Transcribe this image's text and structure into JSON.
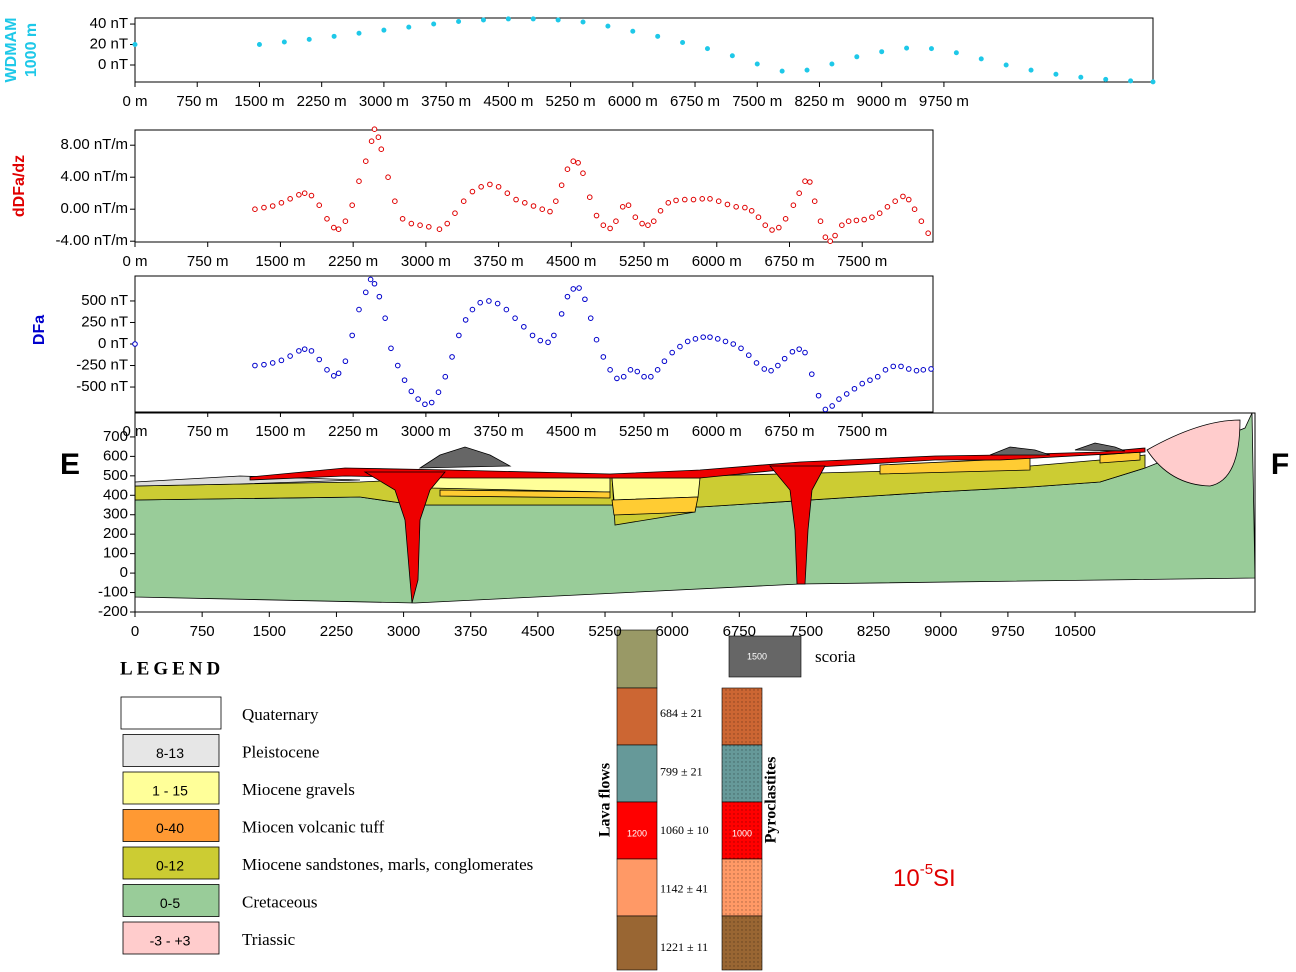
{
  "chart_data": [
    {
      "type": "scatter",
      "ylabel": [
        "WDMAM",
        "1000 m"
      ],
      "color": "#1ec8e8",
      "marker": "filled",
      "xlim": [
        0,
        12270
      ],
      "ylim": [
        -16.6,
        45.9
      ],
      "xticks": [
        {
          "value": 0,
          "label": "0 m"
        },
        {
          "value": 750,
          "label": "750 m"
        },
        {
          "value": 1500,
          "label": "1500 m"
        },
        {
          "value": 2250,
          "label": "2250 m"
        },
        {
          "value": 3000,
          "label": "3000 m"
        },
        {
          "value": 3750,
          "label": "3750 m"
        },
        {
          "value": 4500,
          "label": "4500 m"
        },
        {
          "value": 5250,
          "label": "5250 m"
        },
        {
          "value": 6000,
          "label": "6000 m"
        },
        {
          "value": 6750,
          "label": "6750 m"
        },
        {
          "value": 7500,
          "label": "7500 m"
        },
        {
          "value": 8250,
          "label": "8250 m"
        },
        {
          "value": 9000,
          "label": "9000 m"
        },
        {
          "value": 9750,
          "label": "9750 m"
        }
      ],
      "yticks": [
        {
          "value": 40,
          "label": "40 nT"
        },
        {
          "value": 20,
          "label": "20 nT"
        },
        {
          "value": 0,
          "label": "0 nT"
        }
      ],
      "x": [
        0,
        1500,
        1800,
        2100,
        2400,
        2700,
        3000,
        3300,
        3600,
        3900,
        4200,
        4500,
        4800,
        5100,
        5400,
        5700,
        6000,
        6300,
        6600,
        6900,
        7200,
        7500,
        7800,
        8100,
        8400,
        8700,
        9000,
        9300,
        9600,
        9900,
        10200,
        10500,
        10800,
        11100,
        11400,
        11700,
        12000,
        12270
      ],
      "values": [
        20,
        20,
        22.5,
        25,
        28,
        31,
        34,
        37,
        40,
        42.5,
        44,
        45,
        45,
        44,
        42,
        38,
        33,
        28,
        22,
        16,
        9,
        1,
        -6,
        -5,
        1,
        8,
        13,
        16.5,
        16,
        12,
        6,
        0,
        -5,
        -9,
        -12,
        -14,
        -15.5,
        -16.5
      ]
    },
    {
      "type": "scatter",
      "ylabel": [
        "dDFa/dz"
      ],
      "color": "#e00000",
      "marker": "open",
      "xlim": [
        0,
        8230
      ],
      "ylim": [
        -4.1,
        9.9
      ],
      "xticks": [
        {
          "value": 0,
          "label": "0 m"
        },
        {
          "value": 750,
          "label": "750 m"
        },
        {
          "value": 1500,
          "label": "1500 m"
        },
        {
          "value": 2250,
          "label": "2250 m"
        },
        {
          "value": 3000,
          "label": "3000 m"
        },
        {
          "value": 3750,
          "label": "3750 m"
        },
        {
          "value": 4500,
          "label": "4500 m"
        },
        {
          "value": 5250,
          "label": "5250 m"
        },
        {
          "value": 6000,
          "label": "6000 m"
        },
        {
          "value": 6750,
          "label": "6750 m"
        },
        {
          "value": 7500,
          "label": "7500 m"
        }
      ],
      "yticks": [
        {
          "value": 8,
          "label": "8.00 nT/m"
        },
        {
          "value": 4,
          "label": "4.00 nT/m"
        },
        {
          "value": 0,
          "label": "0.00 nT/m"
        },
        {
          "value": -4,
          "label": "-4.00 nT/m"
        }
      ],
      "x": [
        1237,
        1330,
        1420,
        1510,
        1600,
        1690,
        1750,
        1820,
        1900,
        1980,
        2050,
        2100,
        2170,
        2240,
        2310,
        2380,
        2440,
        2470,
        2510,
        2540,
        2610,
        2680,
        2760,
        2850,
        2940,
        3030,
        3140,
        3220,
        3300,
        3390,
        3480,
        3570,
        3660,
        3750,
        3840,
        3930,
        4020,
        4110,
        4200,
        4280,
        4340,
        4400,
        4460,
        4520,
        4570,
        4620,
        4690,
        4760,
        4830,
        4900,
        4960,
        5030,
        5090,
        5160,
        5230,
        5290,
        5350,
        5420,
        5500,
        5580,
        5670,
        5760,
        5850,
        5930,
        6020,
        6110,
        6200,
        6290,
        6360,
        6430,
        6500,
        6570,
        6640,
        6710,
        6790,
        6850,
        6910,
        6960,
        7010,
        7070,
        7120,
        7170,
        7220,
        7290,
        7360,
        7440,
        7520,
        7600,
        7680,
        7760,
        7840,
        7920,
        7980,
        8040,
        8110,
        8180
      ],
      "values": [
        0,
        0.2,
        0.4,
        0.8,
        1.3,
        1.8,
        2,
        1.7,
        0.5,
        -1.2,
        -2.3,
        -2.5,
        -1.5,
        0.5,
        3.5,
        6,
        8.5,
        10,
        9,
        7.5,
        4,
        1,
        -1.2,
        -1.8,
        -2,
        -2.2,
        -2.5,
        -1.8,
        -0.5,
        1,
        2.2,
        2.8,
        3.1,
        2.8,
        2,
        1.2,
        0.8,
        0.4,
        0,
        -0.3,
        1,
        3,
        5,
        6,
        5.8,
        4.5,
        1.5,
        -0.8,
        -2,
        -2.4,
        -1.5,
        0.3,
        0.5,
        -1,
        -1.8,
        -2,
        -1.5,
        -0.2,
        0.8,
        1.1,
        1.2,
        1.2,
        1.3,
        1.3,
        1,
        0.6,
        0.3,
        0.2,
        -0.2,
        -1,
        -2,
        -2.6,
        -2.3,
        -1.2,
        0.5,
        2,
        3.5,
        3.4,
        1,
        -1.5,
        -3.5,
        -4,
        -3.3,
        -2,
        -1.5,
        -1.4,
        -1.3,
        -1,
        -0.5,
        0.3,
        1,
        1.6,
        1.2,
        0,
        -1.5,
        -3
      ]
    },
    {
      "type": "scatter",
      "ylabel": [
        "DFa"
      ],
      "color": "#0000cc",
      "marker": "open",
      "xlim": [
        0,
        8230
      ],
      "ylim": [
        -790,
        790
      ],
      "xticks": [
        {
          "value": 0,
          "label": "0 m"
        },
        {
          "value": 750,
          "label": "750 m"
        },
        {
          "value": 1500,
          "label": "1500 m"
        },
        {
          "value": 2250,
          "label": "2250 m"
        },
        {
          "value": 3000,
          "label": "3000 m"
        },
        {
          "value": 3750,
          "label": "3750 m"
        },
        {
          "value": 4500,
          "label": "4500 m"
        },
        {
          "value": 5250,
          "label": "5250 m"
        },
        {
          "value": 6000,
          "label": "6000 m"
        },
        {
          "value": 6750,
          "label": "6750 m"
        },
        {
          "value": 7500,
          "label": "7500 m"
        }
      ],
      "yticks": [
        {
          "value": 500,
          "label": "500 nT"
        },
        {
          "value": 250,
          "label": "250 nT"
        },
        {
          "value": 0,
          "label": "0 nT"
        },
        {
          "value": -250,
          "label": "-250 nT"
        },
        {
          "value": -500,
          "label": "-500 nT"
        }
      ],
      "x": [
        0,
        1237,
        1330,
        1420,
        1510,
        1600,
        1690,
        1750,
        1820,
        1900,
        1980,
        2050,
        2100,
        2170,
        2240,
        2310,
        2380,
        2430,
        2470,
        2520,
        2580,
        2640,
        2710,
        2780,
        2850,
        2920,
        2990,
        3060,
        3130,
        3200,
        3270,
        3340,
        3410,
        3480,
        3560,
        3650,
        3740,
        3830,
        3920,
        4010,
        4100,
        4180,
        4260,
        4320,
        4400,
        4460,
        4520,
        4580,
        4640,
        4700,
        4760,
        4830,
        4900,
        4970,
        5040,
        5110,
        5180,
        5250,
        5320,
        5390,
        5460,
        5540,
        5620,
        5700,
        5780,
        5860,
        5930,
        6010,
        6090,
        6170,
        6250,
        6330,
        6410,
        6490,
        6560,
        6630,
        6700,
        6780,
        6850,
        6910,
        6980,
        7050,
        7120,
        7190,
        7260,
        7340,
        7420,
        7500,
        7580,
        7660,
        7740,
        7820,
        7900,
        7980,
        8060,
        8130,
        8210
      ],
      "values": [
        0,
        -250,
        -240,
        -220,
        -190,
        -140,
        -80,
        -60,
        -80,
        -180,
        -300,
        -370,
        -340,
        -200,
        100,
        400,
        600,
        750,
        700,
        550,
        300,
        -50,
        -250,
        -420,
        -550,
        -640,
        -700,
        -680,
        -560,
        -380,
        -150,
        100,
        280,
        400,
        480,
        500,
        470,
        400,
        300,
        200,
        100,
        40,
        20,
        100,
        350,
        550,
        640,
        650,
        520,
        300,
        50,
        -150,
        -300,
        -400,
        -380,
        -300,
        -320,
        -380,
        -380,
        -300,
        -200,
        -100,
        -30,
        30,
        60,
        80,
        80,
        60,
        30,
        0,
        -50,
        -130,
        -220,
        -290,
        -310,
        -250,
        -170,
        -90,
        -60,
        -100,
        -350,
        -600,
        -760,
        -720,
        -640,
        -580,
        -520,
        -460,
        -420,
        -380,
        -300,
        -260,
        -260,
        -290,
        -310,
        -300,
        -290
      ]
    },
    {
      "type": "section",
      "left_label": "E",
      "right_label": "F",
      "xlim": [
        0,
        12510
      ],
      "ylim": [
        -200,
        823
      ],
      "xticks": [
        0,
        750,
        1500,
        2250,
        3000,
        3750,
        4500,
        5250,
        6000,
        6750,
        7500,
        8250,
        9000,
        9750,
        10500
      ],
      "yticks": [
        700,
        600,
        500,
        400,
        300,
        200,
        100,
        0,
        -100,
        -200
      ]
    }
  ],
  "legend": {
    "title": "LEGEND",
    "items": [
      {
        "text": "Quaternary",
        "color": "#ffffff"
      },
      {
        "box": "8-13",
        "text": "Pleistocene",
        "color": "#e6e6e6"
      },
      {
        "box": "1 - 15",
        "text": "Miocene gravels",
        "color": "#ffff99"
      },
      {
        "box": "0-40",
        "text": "Miocen volcanic tuff",
        "color": "#ff9933"
      },
      {
        "box": "0-12",
        "text": "Miocene sandstones, marls, conglomerates",
        "color": "#cccc33"
      },
      {
        "box": "0-5",
        "text": "Cretaceous",
        "color": "#99cc99"
      },
      {
        "box": "-3 - +3",
        "text": "Triassic",
        "color": "#ffcccc"
      }
    ]
  },
  "lava_flows": {
    "label": "Lava flows",
    "box_label": "1200",
    "ages": [
      "684 ± 21",
      "799 ± 21",
      "1060 ± 10",
      "1142 ± 41",
      "1221 ± 11"
    ]
  },
  "pyroclastites": {
    "label": "Pyroclastites",
    "box_label": "1000"
  },
  "scoria": {
    "label": "scoria",
    "box_label": "1500"
  },
  "unit": {
    "base": "10",
    "exp": "-5",
    "suffix": "SI"
  }
}
